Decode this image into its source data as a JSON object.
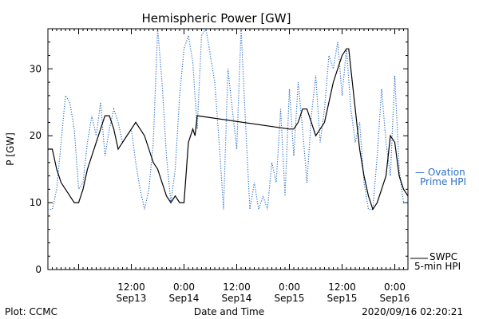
{
  "chart_data": {
    "type": "line",
    "title": "Hemispheric Power [GW]",
    "xlabel": "Date and Time",
    "ylabel": "P [GW]",
    "ylim": [
      0,
      36
    ],
    "xlim": [
      "2020-09-12 17:00",
      "2020-09-16 03:00"
    ],
    "yticks": [
      0,
      10,
      20,
      30
    ],
    "xticks": [
      {
        "t": "2020-09-13 12:00",
        "time": "12:00",
        "date": "Sep13"
      },
      {
        "t": "2020-09-14 00:00",
        "time": "0:00",
        "date": "Sep14"
      },
      {
        "t": "2020-09-14 12:00",
        "time": "12:00",
        "date": "Sep14"
      },
      {
        "t": "2020-09-15 00:00",
        "time": "0:00",
        "date": "Sep15"
      },
      {
        "t": "2020-09-15 12:00",
        "time": "12:00",
        "date": "Sep15"
      },
      {
        "t": "2020-09-16 00:00",
        "time": "0:00",
        "date": "Sep16"
      }
    ],
    "series": [
      {
        "name": "SWPC 5-min HPI",
        "color": "#000000",
        "style": "solid",
        "points": [
          [
            "2020-09-12 17:00",
            18
          ],
          [
            "2020-09-12 18:00",
            18
          ],
          [
            "2020-09-12 19:00",
            15
          ],
          [
            "2020-09-12 20:00",
            13
          ],
          [
            "2020-09-12 21:00",
            12
          ],
          [
            "2020-09-12 22:00",
            11
          ],
          [
            "2020-09-12 23:00",
            10
          ],
          [
            "2020-09-13 00:00",
            10
          ],
          [
            "2020-09-13 01:00",
            12
          ],
          [
            "2020-09-13 02:00",
            15
          ],
          [
            "2020-09-13 03:00",
            17
          ],
          [
            "2020-09-13 04:00",
            19
          ],
          [
            "2020-09-13 05:00",
            21
          ],
          [
            "2020-09-13 06:00",
            23
          ],
          [
            "2020-09-13 07:00",
            23
          ],
          [
            "2020-09-13 08:00",
            21
          ],
          [
            "2020-09-13 09:00",
            18
          ],
          [
            "2020-09-13 10:00",
            19
          ],
          [
            "2020-09-13 11:00",
            20
          ],
          [
            "2020-09-13 12:00",
            21
          ],
          [
            "2020-09-13 13:00",
            22
          ],
          [
            "2020-09-13 14:00",
            21
          ],
          [
            "2020-09-13 15:00",
            20
          ],
          [
            "2020-09-13 16:00",
            18
          ],
          [
            "2020-09-13 17:00",
            16
          ],
          [
            "2020-09-13 18:00",
            15
          ],
          [
            "2020-09-13 19:00",
            13
          ],
          [
            "2020-09-13 20:00",
            11
          ],
          [
            "2020-09-13 21:00",
            10
          ],
          [
            "2020-09-13 22:00",
            11
          ],
          [
            "2020-09-13 23:00",
            10
          ],
          [
            "2020-09-14 00:00",
            10
          ],
          [
            "2020-09-14 01:00",
            19
          ],
          [
            "2020-09-14 02:00",
            21
          ],
          [
            "2020-09-14 02:30",
            20
          ],
          [
            "2020-09-14 03:00",
            23
          ],
          [
            "2020-09-15 00:00",
            21
          ],
          [
            "2020-09-15 01:00",
            21
          ],
          [
            "2020-09-15 02:00",
            22
          ],
          [
            "2020-09-15 03:00",
            24
          ],
          [
            "2020-09-15 04:00",
            24
          ],
          [
            "2020-09-15 05:00",
            22
          ],
          [
            "2020-09-15 06:00",
            20
          ],
          [
            "2020-09-15 07:00",
            21
          ],
          [
            "2020-09-15 08:00",
            22
          ],
          [
            "2020-09-15 09:00",
            25
          ],
          [
            "2020-09-15 10:00",
            28
          ],
          [
            "2020-09-15 11:00",
            30
          ],
          [
            "2020-09-15 12:00",
            32
          ],
          [
            "2020-09-15 13:00",
            33
          ],
          [
            "2020-09-15 13:30",
            33
          ],
          [
            "2020-09-15 14:00",
            30
          ],
          [
            "2020-09-15 15:00",
            24
          ],
          [
            "2020-09-15 16:00",
            18
          ],
          [
            "2020-09-15 17:00",
            14
          ],
          [
            "2020-09-15 18:00",
            11
          ],
          [
            "2020-09-15 19:00",
            9
          ],
          [
            "2020-09-15 20:00",
            10
          ],
          [
            "2020-09-15 21:00",
            12
          ],
          [
            "2020-09-15 22:00",
            14
          ],
          [
            "2020-09-15 23:00",
            20
          ],
          [
            "2020-09-16 00:00",
            19
          ],
          [
            "2020-09-16 01:00",
            14
          ],
          [
            "2020-09-16 02:00",
            12
          ],
          [
            "2020-09-16 03:00",
            11
          ]
        ]
      },
      {
        "name": "Ovation Prime HPI",
        "color": "#2a6fc9",
        "style": "dotted",
        "points": [
          [
            "2020-09-12 17:00",
            9
          ],
          [
            "2020-09-12 18:00",
            9
          ],
          [
            "2020-09-12 19:00",
            12
          ],
          [
            "2020-09-12 20:00",
            19
          ],
          [
            "2020-09-12 21:00",
            26
          ],
          [
            "2020-09-12 22:00",
            25
          ],
          [
            "2020-09-12 23:00",
            21
          ],
          [
            "2020-09-13 00:00",
            12
          ],
          [
            "2020-09-13 01:00",
            13
          ],
          [
            "2020-09-13 02:00",
            19
          ],
          [
            "2020-09-13 03:00",
            23
          ],
          [
            "2020-09-13 04:00",
            20
          ],
          [
            "2020-09-13 05:00",
            25
          ],
          [
            "2020-09-13 06:00",
            17
          ],
          [
            "2020-09-13 07:00",
            21
          ],
          [
            "2020-09-13 08:00",
            24
          ],
          [
            "2020-09-13 09:00",
            22
          ],
          [
            "2020-09-13 10:00",
            19
          ],
          [
            "2020-09-13 11:00",
            20
          ],
          [
            "2020-09-13 12:00",
            21
          ],
          [
            "2020-09-13 13:00",
            16
          ],
          [
            "2020-09-13 14:00",
            12
          ],
          [
            "2020-09-13 15:00",
            9
          ],
          [
            "2020-09-13 16:00",
            12
          ],
          [
            "2020-09-13 17:00",
            19
          ],
          [
            "2020-09-13 18:00",
            36
          ],
          [
            "2020-09-13 19:00",
            28
          ],
          [
            "2020-09-13 20:00",
            17
          ],
          [
            "2020-09-13 21:00",
            10
          ],
          [
            "2020-09-13 22:00",
            15
          ],
          [
            "2020-09-13 23:00",
            26
          ],
          [
            "2020-09-14 00:00",
            33
          ],
          [
            "2020-09-14 01:00",
            35
          ],
          [
            "2020-09-14 02:00",
            31
          ],
          [
            "2020-09-14 03:00",
            21
          ],
          [
            "2020-09-14 04:00",
            35
          ],
          [
            "2020-09-14 05:00",
            36
          ],
          [
            "2020-09-14 06:00",
            32
          ],
          [
            "2020-09-14 07:00",
            28
          ],
          [
            "2020-09-14 08:00",
            19
          ],
          [
            "2020-09-14 09:00",
            9
          ],
          [
            "2020-09-14 10:00",
            30
          ],
          [
            "2020-09-14 11:00",
            24
          ],
          [
            "2020-09-14 12:00",
            18
          ],
          [
            "2020-09-14 13:00",
            36
          ],
          [
            "2020-09-14 14:00",
            22
          ],
          [
            "2020-09-14 15:00",
            9
          ],
          [
            "2020-09-14 16:00",
            13
          ],
          [
            "2020-09-14 17:00",
            9
          ],
          [
            "2020-09-14 18:00",
            11
          ],
          [
            "2020-09-14 19:00",
            9
          ],
          [
            "2020-09-14 20:00",
            16
          ],
          [
            "2020-09-14 21:00",
            13
          ],
          [
            "2020-09-14 22:00",
            24
          ],
          [
            "2020-09-14 23:00",
            11
          ],
          [
            "2020-09-15 00:00",
            27
          ],
          [
            "2020-09-15 01:00",
            17
          ],
          [
            "2020-09-15 02:00",
            28
          ],
          [
            "2020-09-15 03:00",
            21
          ],
          [
            "2020-09-15 04:00",
            13
          ],
          [
            "2020-09-15 05:00",
            23
          ],
          [
            "2020-09-15 06:00",
            29
          ],
          [
            "2020-09-15 07:00",
            19
          ],
          [
            "2020-09-15 08:00",
            24
          ],
          [
            "2020-09-15 09:00",
            32
          ],
          [
            "2020-09-15 10:00",
            30
          ],
          [
            "2020-09-15 11:00",
            34
          ],
          [
            "2020-09-15 12:00",
            26
          ],
          [
            "2020-09-15 13:00",
            33
          ],
          [
            "2020-09-15 14:00",
            24
          ],
          [
            "2020-09-15 15:00",
            19
          ],
          [
            "2020-09-15 16:00",
            22
          ],
          [
            "2020-09-15 17:00",
            13
          ],
          [
            "2020-09-15 18:00",
            9
          ],
          [
            "2020-09-15 19:00",
            9
          ],
          [
            "2020-09-15 20:00",
            17
          ],
          [
            "2020-09-15 21:00",
            27
          ],
          [
            "2020-09-15 22:00",
            19
          ],
          [
            "2020-09-15 23:00",
            14
          ],
          [
            "2020-09-16 00:00",
            29
          ],
          [
            "2020-09-16 01:00",
            15
          ],
          [
            "2020-09-16 02:00",
            10
          ],
          [
            "2020-09-16 03:00",
            10
          ]
        ]
      }
    ],
    "legend": [
      {
        "label_line1": "— Ovation",
        "label_line2": "Prime HPI",
        "color": "#2a6fc9"
      },
      {
        "label_line1": "SWPC",
        "label_line2": "5-min HPI",
        "color": "#000000"
      }
    ]
  },
  "footer": {
    "left": "Plot: CCMC",
    "center": "Date and Time",
    "right": "2020/09/16 02:20:21"
  }
}
